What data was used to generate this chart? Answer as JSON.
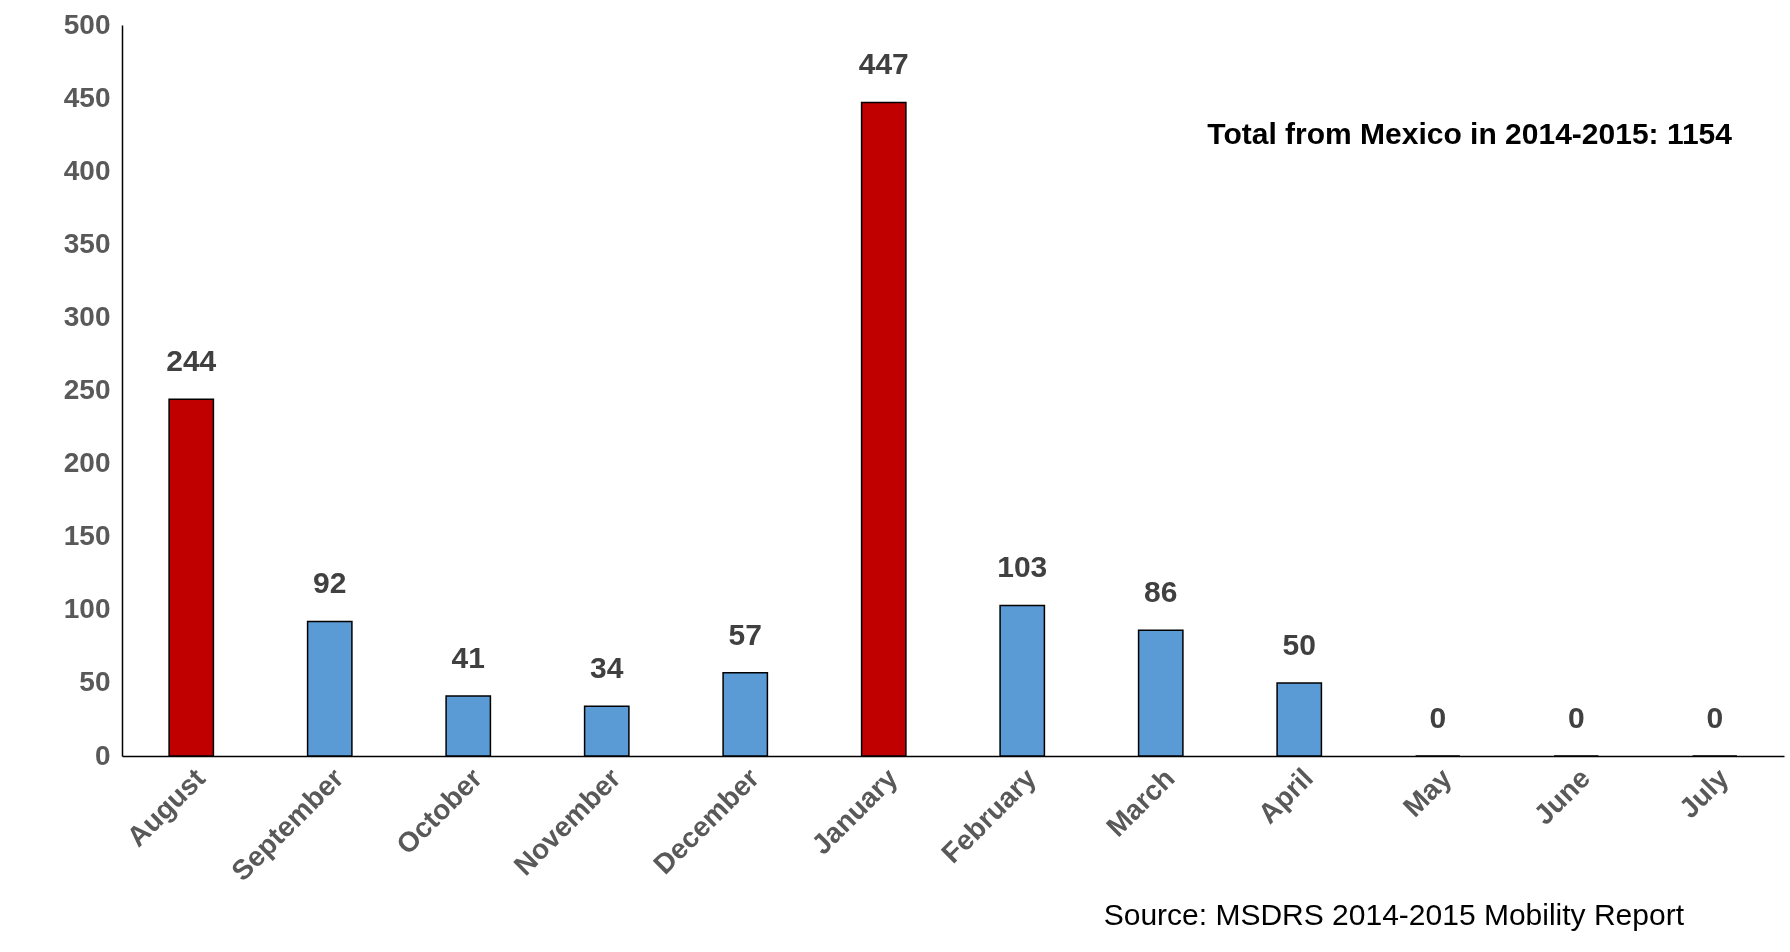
{
  "chart_data": {
    "type": "bar",
    "categories": [
      "August",
      "September",
      "October",
      "November",
      "December",
      "January",
      "February",
      "March",
      "April",
      "May",
      "June",
      "July"
    ],
    "values": [
      244,
      92,
      41,
      34,
      57,
      447,
      103,
      86,
      50,
      0,
      0,
      0
    ],
    "colors": [
      "#c00000",
      "#5b9bd5",
      "#5b9bd5",
      "#5b9bd5",
      "#5b9bd5",
      "#c00000",
      "#5b9bd5",
      "#5b9bd5",
      "#5b9bd5",
      "#5b9bd5",
      "#5b9bd5",
      "#5b9bd5"
    ],
    "ylim": [
      0,
      500
    ],
    "yticks": [
      0,
      50,
      100,
      150,
      200,
      250,
      300,
      350,
      400,
      450,
      500
    ],
    "data_labels": true,
    "annotations": [
      "Total from Mexico in 2014-2015: 1154",
      "Source: MSDRS  2014-2015 Mobility Report"
    ]
  }
}
